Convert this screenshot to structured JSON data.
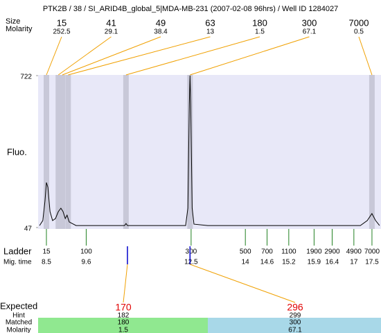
{
  "chart_data": {
    "type": "electropherogram",
    "title": "PTK2B / 38 / SI_ARID4B_global_5|MDA-MB-231 (2007-02-08 96hrs) / Well ID 1284027",
    "peak_size_label": "Size",
    "peak_molarity_label": "Molarity",
    "y_label": "Fluo.",
    "ylim": [
      47,
      722
    ],
    "yticks": [
      47,
      722
    ],
    "xlim": [
      8.27,
      17.75
    ],
    "peaks": {
      "x": [
        8.5,
        8.83,
        8.94,
        9.1,
        10.7,
        12.47,
        17.5
      ],
      "sizes": [
        15,
        41,
        49,
        63,
        180,
        300,
        7000
      ],
      "molarity": [
        252.5,
        29.1,
        38.4,
        13,
        1.5,
        67.1,
        0.5
      ]
    },
    "trace": {
      "color": "#000000",
      "x": [
        8.31,
        8.4,
        8.46,
        8.5,
        8.54,
        8.6,
        8.67,
        8.75,
        8.83,
        8.9,
        8.96,
        9.02,
        9.07,
        9.13,
        9.32,
        10.09,
        10.66,
        10.7,
        10.74,
        12.35,
        12.41,
        12.45,
        12.47,
        12.49,
        12.53,
        12.58,
        12.96,
        17.18,
        17.37,
        17.5,
        17.6,
        17.71
      ],
      "values": [
        56,
        78,
        164,
        247,
        226,
        118,
        78,
        87,
        118,
        133,
        118,
        87,
        102,
        72,
        56,
        56,
        56,
        65,
        56,
        56,
        133,
        596,
        722,
        596,
        133,
        62,
        56,
        56,
        78,
        109,
        78,
        56
      ]
    },
    "ladder_label": "Ladder",
    "mig_time_label": "Mig. time",
    "ladder": {
      "sizes": [
        15,
        100,
        300,
        500,
        700,
        1100,
        1900,
        2900,
        4900,
        7000
      ],
      "mig_times": [
        8.5,
        9.6,
        12.5,
        14,
        14.6,
        15.2,
        15.9,
        16.4,
        17,
        17.5
      ]
    },
    "expected_label": "Expected",
    "hint_label": "Hint",
    "matched_label": "Matched",
    "molarity_label": "Molarity",
    "expected": {
      "x": [
        10.74,
        12.47
      ],
      "values": [
        170,
        296
      ],
      "hint": [
        182,
        299
      ],
      "matched": [
        180,
        300
      ],
      "molarity": [
        1.5,
        67.1
      ]
    }
  }
}
